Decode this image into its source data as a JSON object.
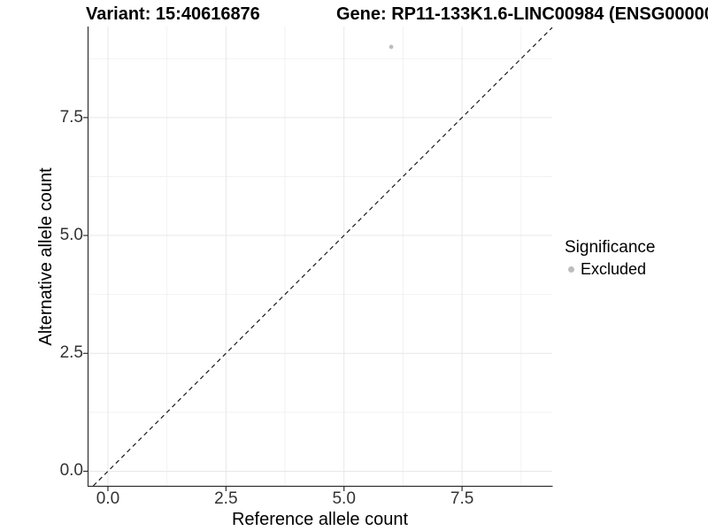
{
  "header": {
    "variant_title": "Variant: 15:40616876",
    "gene_title": "Gene: RP11-133K1.6-LINC00984 (ENSG00000"
  },
  "legend": {
    "title": "Significance",
    "items": [
      {
        "label": "Excluded",
        "color": "#bdbdbd"
      }
    ]
  },
  "chart_data": {
    "type": "scatter",
    "xlabel": "Reference allele count",
    "ylabel": "Alternative allele count",
    "points": [
      {
        "x": 6,
        "y": 9,
        "series": "Excluded",
        "color": "#bdbdbd"
      }
    ],
    "x_ticks": [
      0,
      2.5,
      5,
      7.5
    ],
    "x_tick_labels": [
      "0.0",
      "2.5",
      "5.0",
      "7.5"
    ],
    "y_ticks": [
      0,
      2.5,
      5,
      7.5
    ],
    "y_tick_labels": [
      "0.0",
      "2.5",
      "5.0",
      "7.5"
    ],
    "x_minor_ticks": [
      1.25,
      3.75,
      6.25,
      8.75
    ],
    "y_minor_ticks": [
      1.25,
      3.75,
      6.25,
      8.75
    ],
    "xlim": [
      -0.43,
      9.41
    ],
    "ylim": [
      -0.31,
      9.43
    ],
    "diagonal_line": {
      "slope": 1,
      "intercept": 0,
      "style": "dashed",
      "color": "#1a1a1a"
    },
    "grid": {
      "visible": true,
      "major_color": "#e7e7e7",
      "minor_color": "#f2f2f2"
    },
    "axis_color": "#2f2f2f",
    "point_radius": 2.4,
    "legend_position": "right"
  }
}
